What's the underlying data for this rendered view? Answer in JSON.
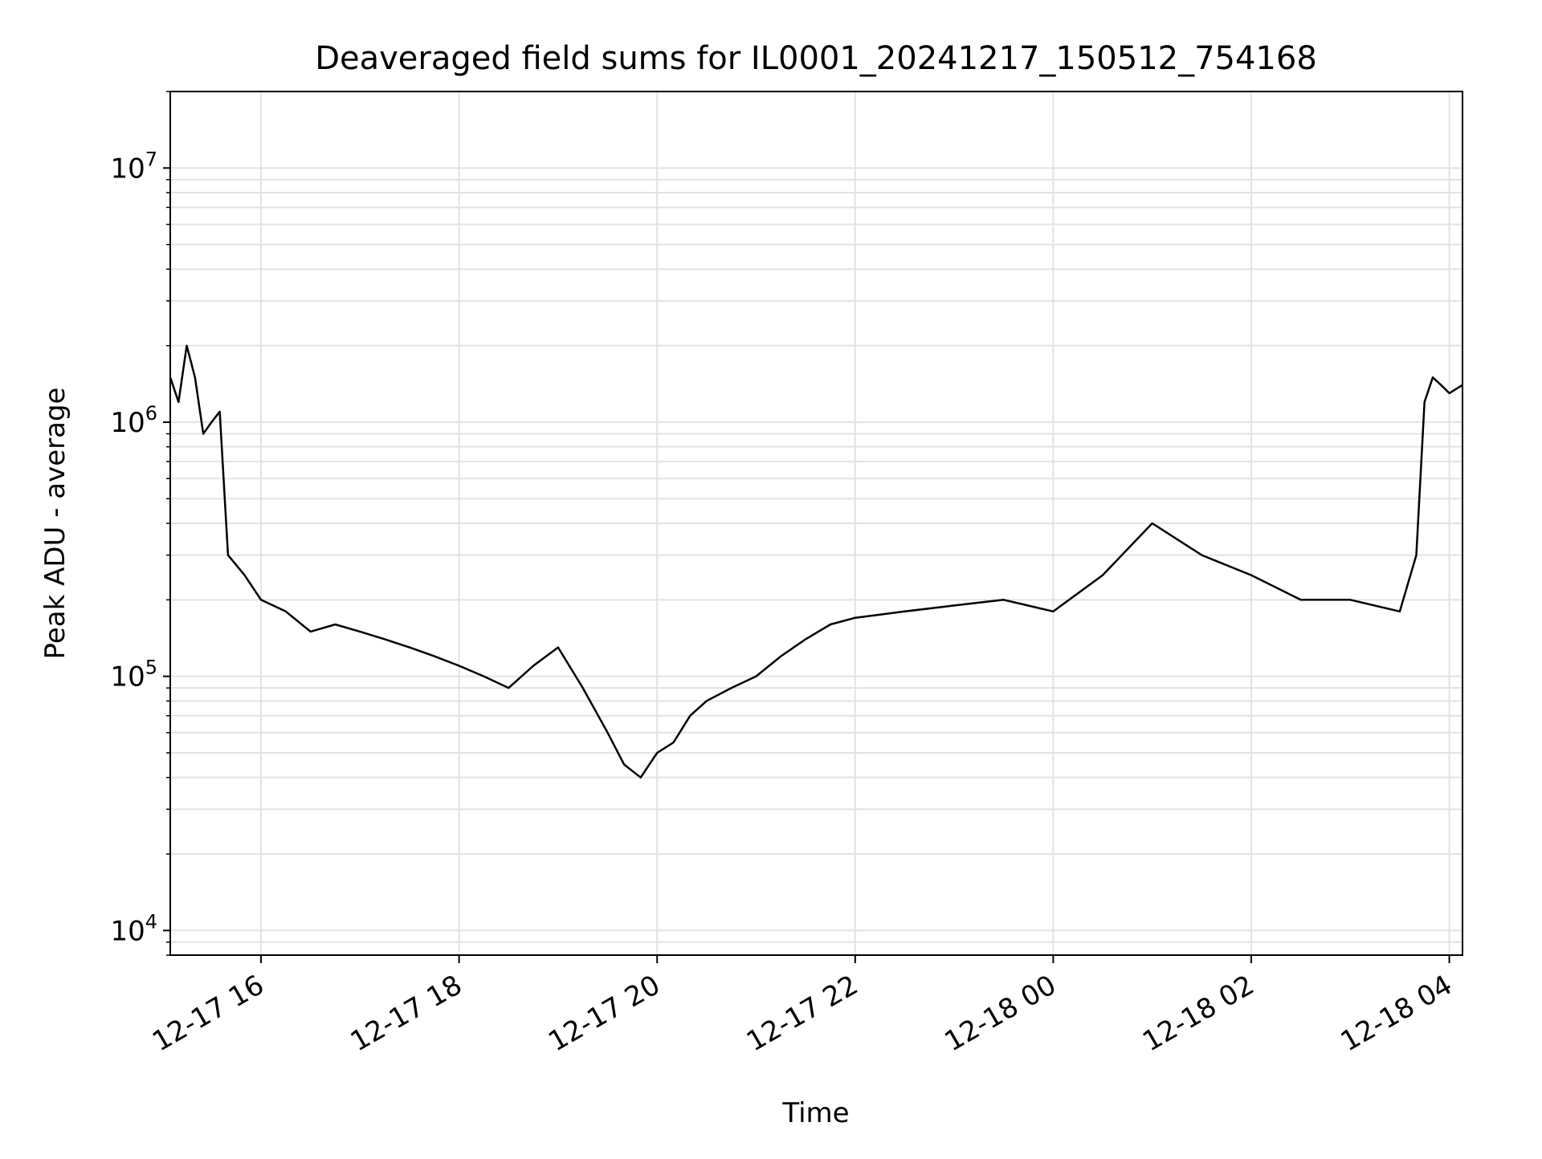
{
  "chart_data": {
    "type": "line",
    "title": "Deaveraged field sums for IL0001_20241217_150512_754168",
    "xlabel": "Time",
    "ylabel": "Peak ADU - average",
    "y_scale": "log",
    "xlim": [
      "2024-12-17 15:05",
      "2024-12-18 04:08"
    ],
    "ylim": [
      8000,
      20000000
    ],
    "grid": true,
    "line_color": "#000000",
    "x_ticks": [
      {
        "time": "2024-12-17 16:00",
        "label": "12-17 16"
      },
      {
        "time": "2024-12-17 18:00",
        "label": "12-17 18"
      },
      {
        "time": "2024-12-17 20:00",
        "label": "12-17 20"
      },
      {
        "time": "2024-12-17 22:00",
        "label": "12-17 22"
      },
      {
        "time": "2024-12-18 00:00",
        "label": "12-18 00"
      },
      {
        "time": "2024-12-18 02:00",
        "label": "12-18 02"
      },
      {
        "time": "2024-12-18 04:00",
        "label": "12-18 04"
      }
    ],
    "y_ticks": [
      {
        "value": 10000,
        "base": "10",
        "exp": "4"
      },
      {
        "value": 100000,
        "base": "10",
        "exp": "5"
      },
      {
        "value": 1000000,
        "base": "10",
        "exp": "6"
      },
      {
        "value": 10000000,
        "base": "10",
        "exp": "7"
      }
    ],
    "series": [
      {
        "x": [
          "2024-12-17 15:05",
          "2024-12-17 15:10",
          "2024-12-17 15:15",
          "2024-12-17 15:20",
          "2024-12-17 15:25",
          "2024-12-17 15:30",
          "2024-12-17 15:35",
          "2024-12-17 15:40",
          "2024-12-17 15:50",
          "2024-12-17 16:00",
          "2024-12-17 16:15",
          "2024-12-17 16:30",
          "2024-12-17 16:45",
          "2024-12-17 17:00",
          "2024-12-17 17:15",
          "2024-12-17 17:30",
          "2024-12-17 17:45",
          "2024-12-17 18:00",
          "2024-12-17 18:15",
          "2024-12-17 18:30",
          "2024-12-17 18:45",
          "2024-12-17 19:00",
          "2024-12-17 19:15",
          "2024-12-17 19:30",
          "2024-12-17 19:40",
          "2024-12-17 19:50",
          "2024-12-17 20:00",
          "2024-12-17 20:10",
          "2024-12-17 20:20",
          "2024-12-17 20:30",
          "2024-12-17 20:45",
          "2024-12-17 21:00",
          "2024-12-17 21:15",
          "2024-12-17 21:30",
          "2024-12-17 21:45",
          "2024-12-17 22:00",
          "2024-12-17 22:30",
          "2024-12-17 23:00",
          "2024-12-17 23:30",
          "2024-12-18 00:00",
          "2024-12-18 00:30",
          "2024-12-18 01:00",
          "2024-12-18 01:30",
          "2024-12-18 02:00",
          "2024-12-18 02:30",
          "2024-12-18 03:00",
          "2024-12-18 03:30",
          "2024-12-18 03:40",
          "2024-12-18 03:45",
          "2024-12-18 03:50",
          "2024-12-18 03:55",
          "2024-12-18 04:00",
          "2024-12-18 04:08"
        ],
        "y": [
          1500000,
          1200000,
          2000000,
          1500000,
          900000,
          1000000,
          1100000,
          300000,
          250000,
          200000,
          180000,
          150000,
          160000,
          150000,
          140000,
          130000,
          120000,
          110000,
          100000,
          90000,
          110000,
          130000,
          90000,
          60000,
          45000,
          40000,
          50000,
          55000,
          70000,
          80000,
          90000,
          100000,
          120000,
          140000,
          160000,
          170000,
          180000,
          190000,
          200000,
          180000,
          250000,
          400000,
          300000,
          250000,
          200000,
          200000,
          180000,
          300000,
          1200000,
          1500000,
          1400000,
          1300000,
          1400000
        ]
      }
    ]
  }
}
